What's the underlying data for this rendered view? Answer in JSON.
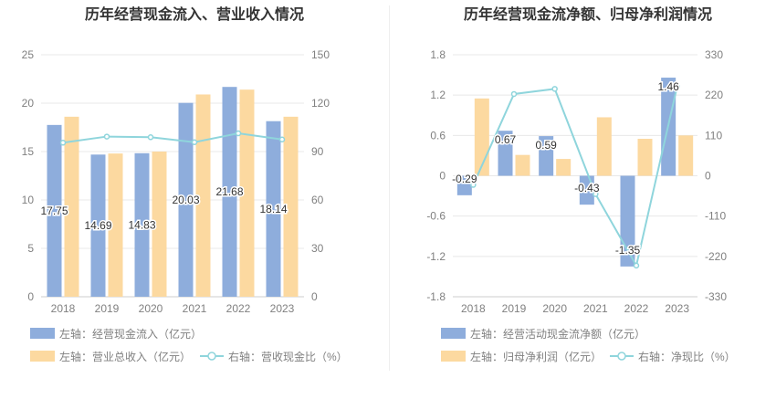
{
  "colors": {
    "blue_bar": "#8eaddc",
    "orange_bar": "#fcd9a0",
    "line": "#8fd5dc",
    "grid": "#e8e8e8",
    "axis_text": "#808080",
    "title_text": "#333333"
  },
  "chart_data": [
    {
      "type": "bar",
      "title": "历年经营现金流入、营业收入情况",
      "categories": [
        "2018",
        "2019",
        "2020",
        "2021",
        "2022",
        "2023"
      ],
      "y_left": {
        "range": [
          0,
          25
        ],
        "ticks": [
          "0",
          "5",
          "10",
          "15",
          "20",
          "25"
        ]
      },
      "y_right": {
        "range": [
          0,
          150
        ],
        "ticks": [
          "0",
          "30",
          "60",
          "90",
          "120",
          "150"
        ]
      },
      "grid": true,
      "legend_position": "bottom",
      "series": [
        {
          "name": "左轴：经营现金流入（亿元）",
          "kind": "bar",
          "axis": "left",
          "color": "#8eaddc",
          "values": [
            17.75,
            14.69,
            14.83,
            20.03,
            21.68,
            18.14
          ],
          "labels": [
            "17.75",
            "14.69",
            "14.83",
            "20.03",
            "21.68",
            "18.14"
          ]
        },
        {
          "name": "左轴：营业总收入（亿元）",
          "kind": "bar",
          "axis": "left",
          "color": "#fcd9a0",
          "values": [
            18.6,
            14.8,
            15.0,
            20.9,
            21.4,
            18.6
          ]
        },
        {
          "name": "右轴：营收现金比（%）",
          "kind": "line",
          "axis": "right",
          "color": "#8fd5dc",
          "values": [
            95.5,
            99.3,
            98.9,
            95.8,
            101.3,
            97.5
          ]
        }
      ]
    },
    {
      "type": "bar",
      "title": "历年经营现金流净额、归母净利润情况",
      "categories": [
        "2018",
        "2019",
        "2020",
        "2021",
        "2022",
        "2023"
      ],
      "y_left": {
        "range": [
          -1.8,
          1.8
        ],
        "ticks": [
          "-1.8",
          "-1.2",
          "-0.6",
          "0",
          "0.6",
          "1.2",
          "1.8"
        ]
      },
      "y_right": {
        "range": [
          -330,
          330
        ],
        "ticks": [
          "-330",
          "-220",
          "-110",
          "0",
          "110",
          "220",
          "330"
        ]
      },
      "grid": true,
      "legend_position": "bottom",
      "series": [
        {
          "name": "左轴：经营活动现金流净额（亿元）",
          "kind": "bar",
          "axis": "left",
          "color": "#8eaddc",
          "values": [
            -0.29,
            0.67,
            0.59,
            -0.43,
            -1.35,
            1.46
          ],
          "labels": [
            "-0.29",
            "0.67",
            "0.59",
            "-0.43",
            "-1.35",
            "1.46"
          ]
        },
        {
          "name": "左轴：归母净利润（亿元）",
          "kind": "bar",
          "axis": "left",
          "color": "#fcd9a0",
          "values": [
            1.15,
            0.31,
            0.25,
            0.87,
            0.55,
            0.6
          ]
        },
        {
          "name": "右轴：净现比（%）",
          "kind": "line",
          "axis": "right",
          "color": "#8fd5dc",
          "values": [
            -25,
            223,
            237,
            -50,
            -245,
            243
          ]
        }
      ]
    }
  ]
}
